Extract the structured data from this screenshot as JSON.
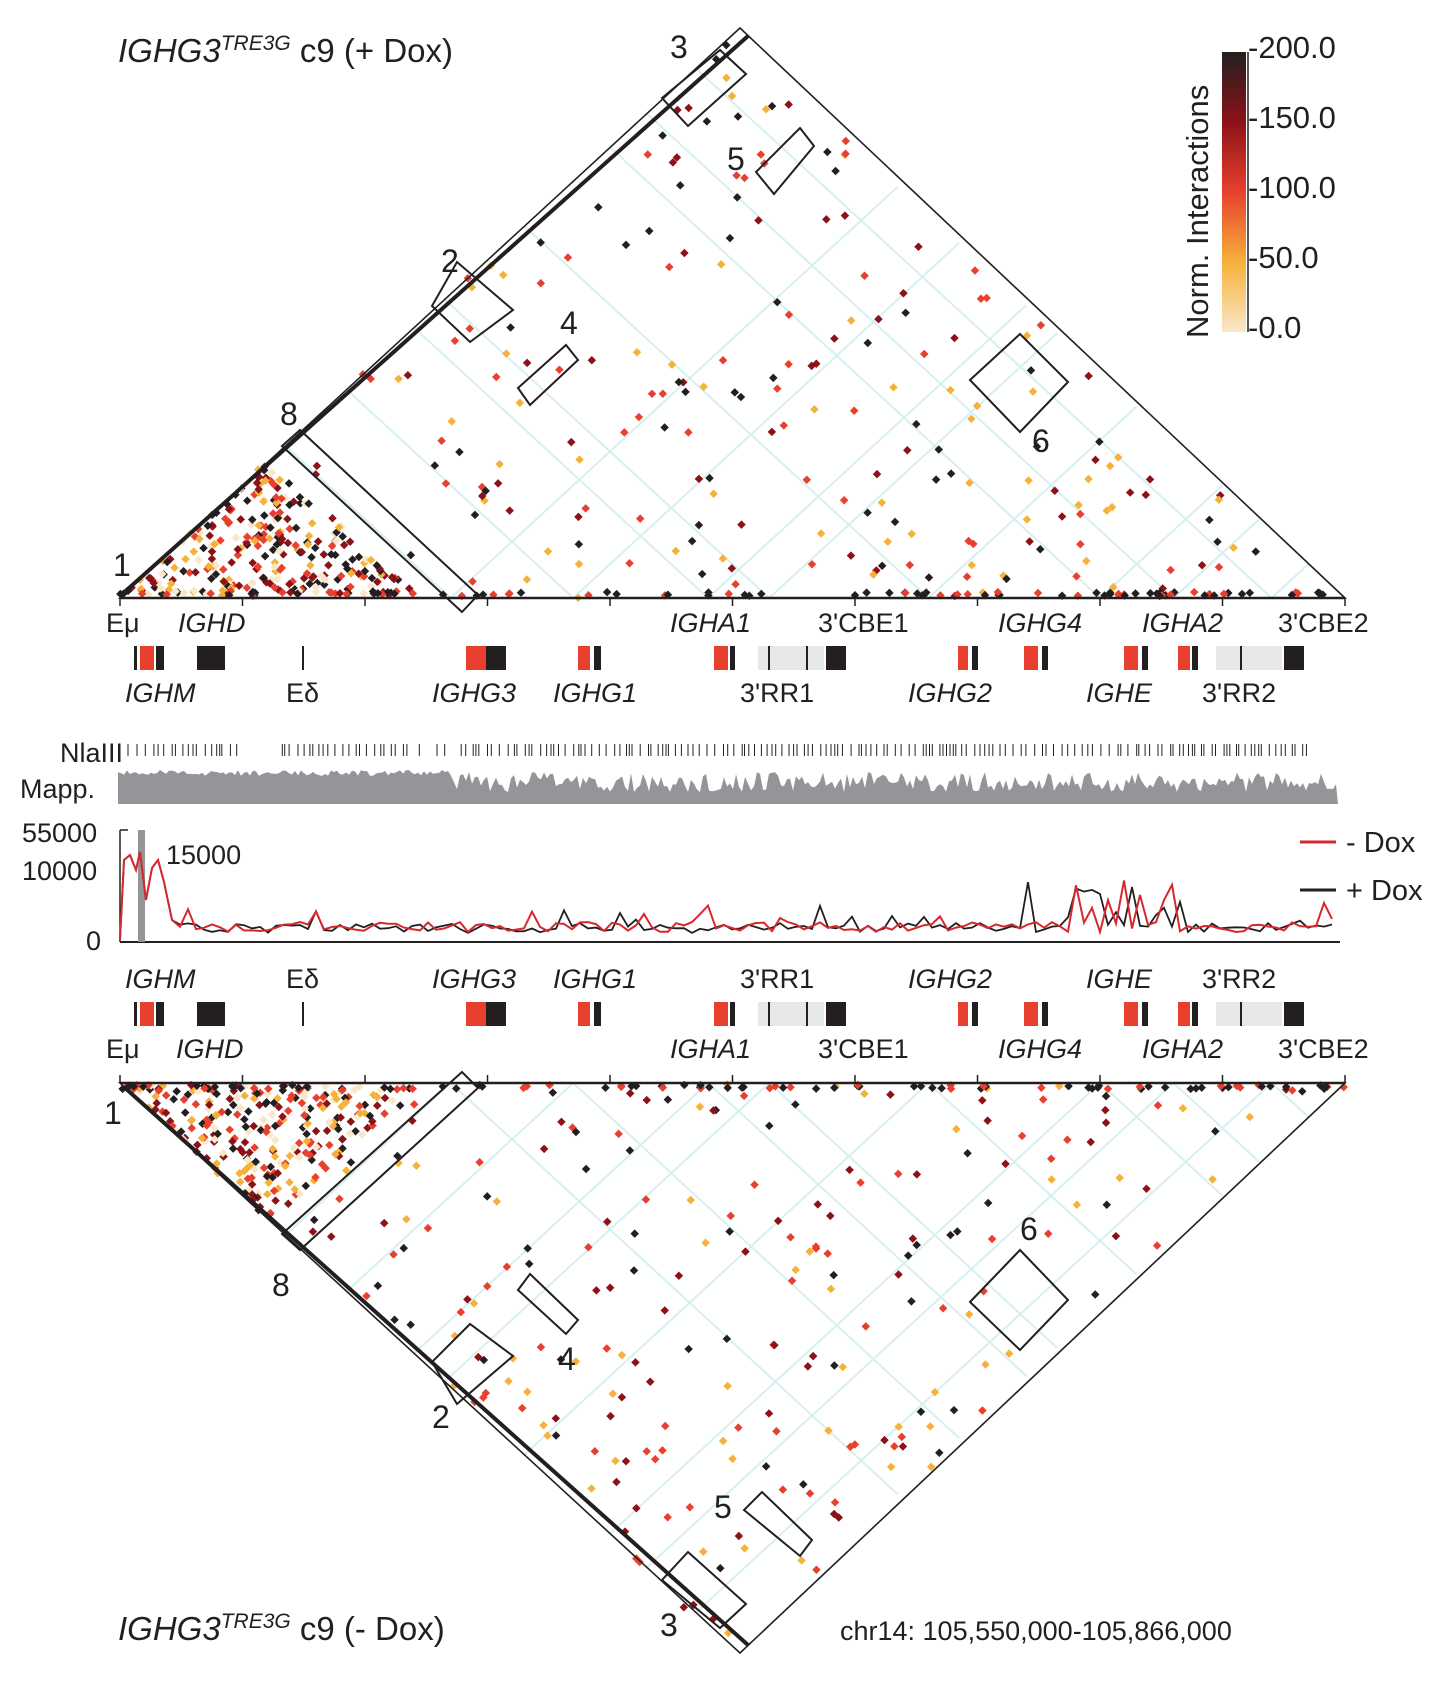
{
  "top_panel": {
    "title_gene": "IGHG3",
    "title_sup": "TRE3G",
    "title_rest": " c9 (+ Dox)"
  },
  "bottom_panel": {
    "title_gene": "IGHG3",
    "title_sup": "TRE3G",
    "title_rest": " c9 (- Dox)"
  },
  "colorbar": {
    "label": "Norm. Interactions",
    "ticks": [
      "-200.0",
      "-150.0",
      "-100.0",
      "-50.0",
      "-0.0"
    ],
    "colors": [
      "#f8e7c8",
      "#f6b13a",
      "#e8402e",
      "#8c1218",
      "#231f20"
    ]
  },
  "box_numbers": [
    "1",
    "2",
    "3",
    "4",
    "5",
    "6",
    "8"
  ],
  "gene_labels_upper": [
    "Eμ",
    "IGHD",
    "IGHA1",
    "3'CBE1",
    "IGHG4",
    "IGHA2",
    "3'CBE2"
  ],
  "gene_labels_lower": [
    "IGHM",
    "Eδ",
    "IGHG3",
    "IGHG1",
    "3'RR1",
    "IGHG2",
    "IGHE",
    "3'RR2"
  ],
  "tracks": {
    "nlaiii_label": "NlaIII",
    "mapp_label": "Mapp."
  },
  "coverage": {
    "y_top_tick": "55000",
    "y_mid_tick": "10000",
    "y_zero_tick": "0",
    "inset_tick": "15000",
    "legend": [
      {
        "label": "- Dox",
        "color": "#d7282f"
      },
      {
        "label": "+ Dox",
        "color": "#231f20"
      }
    ]
  },
  "coordinates": "chr14: 105,550,000-105,866,000"
}
